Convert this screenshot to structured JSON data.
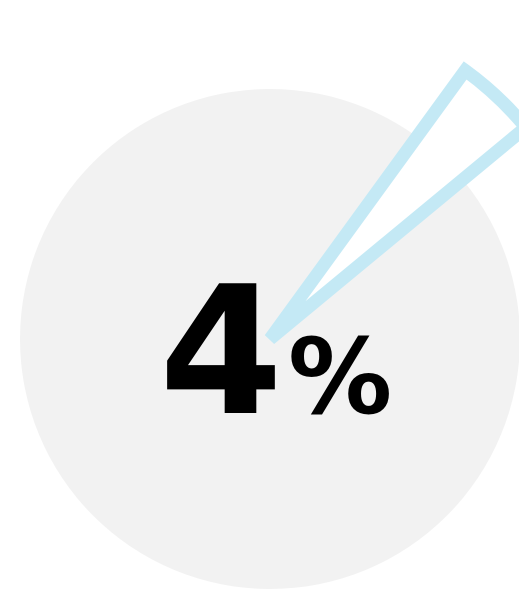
{
  "chart_data": {
    "type": "pie",
    "values": [
      4,
      96
    ],
    "highlight_index": 0,
    "label": {
      "number": "4",
      "suffix": "%"
    },
    "colors": {
      "background_slice": "#f2f2f2",
      "highlight_outline": "#c4e9f5",
      "highlight_fill": "#ffffff",
      "text": "#000000"
    }
  }
}
